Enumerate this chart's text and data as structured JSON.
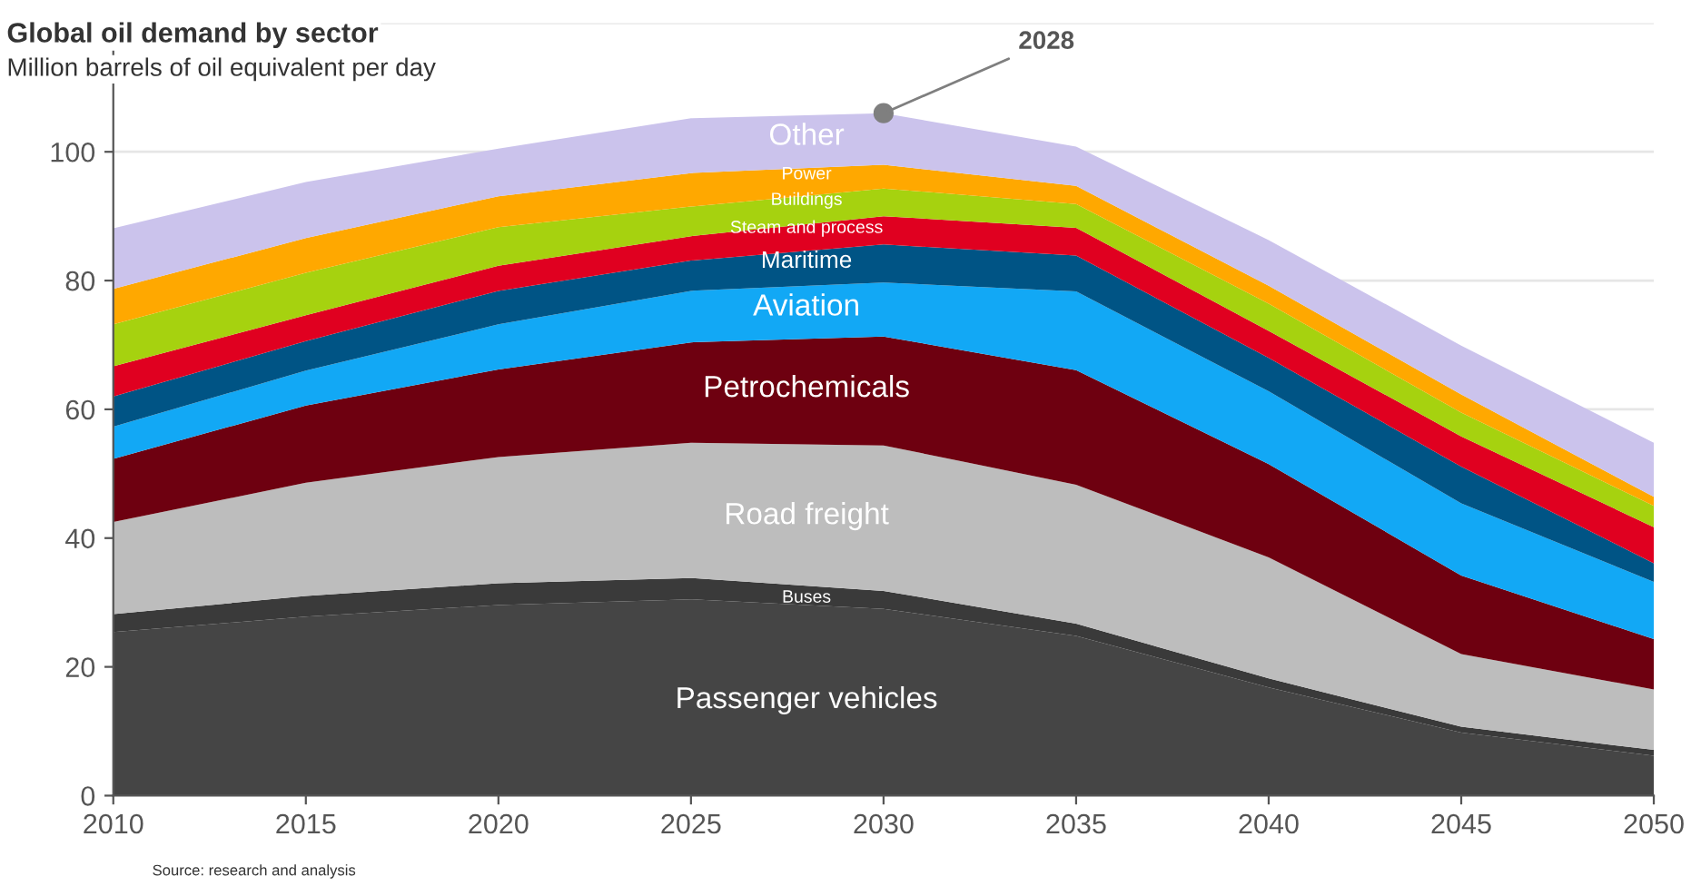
{
  "chart_data": {
    "type": "area",
    "stacked": true,
    "title": "Global oil demand by sector",
    "subtitle": "Million barrels of oil equivalent per day",
    "x": [
      2010,
      2015,
      2020,
      2025,
      2030,
      2035,
      2040,
      2045,
      2050
    ],
    "series": [
      {
        "name": "Passenger vehicles",
        "color": "#454545",
        "values": [
          25.4,
          27.8,
          29.6,
          30.5,
          29.0,
          24.8,
          16.8,
          9.8,
          6.2
        ]
      },
      {
        "name": "Buses",
        "color": "#3a3a3a",
        "values": [
          2.8,
          3.2,
          3.4,
          3.3,
          2.8,
          1.9,
          1.4,
          0.9,
          0.9
        ]
      },
      {
        "name": "Road freight",
        "color": "#bdbdbd",
        "values": [
          14.3,
          17.6,
          19.6,
          21.0,
          22.6,
          21.6,
          18.8,
          11.3,
          9.4
        ]
      },
      {
        "name": "Petrochemicals",
        "color": "#6e0010",
        "values": [
          9.8,
          12.0,
          13.6,
          15.6,
          16.9,
          17.8,
          14.5,
          12.2,
          7.8
        ]
      },
      {
        "name": "Aviation",
        "color": "#12a8f5",
        "values": [
          5.0,
          5.4,
          7.0,
          8.0,
          8.4,
          12.2,
          11.3,
          11.2,
          8.9
        ]
      },
      {
        "name": "Maritime",
        "color": "#005485",
        "values": [
          4.7,
          4.6,
          5.2,
          4.7,
          5.9,
          5.6,
          5.2,
          5.7,
          2.9
        ]
      },
      {
        "name": "Steam and process",
        "color": "#e00020",
        "values": [
          4.7,
          4.0,
          3.9,
          3.8,
          4.4,
          4.3,
          4.2,
          4.7,
          5.6
        ]
      },
      {
        "name": "Buildings",
        "color": "#a6d20f",
        "values": [
          6.5,
          6.6,
          6.0,
          4.6,
          4.3,
          3.7,
          4.2,
          3.7,
          3.3
        ]
      },
      {
        "name": "Power",
        "color": "#ffa800",
        "values": [
          5.5,
          5.4,
          4.8,
          5.2,
          3.7,
          2.8,
          2.8,
          2.8,
          1.4
        ]
      },
      {
        "name": "Other",
        "color": "#cbc3ec",
        "values": [
          9.4,
          8.7,
          7.4,
          8.5,
          8.0,
          6.1,
          7.1,
          7.6,
          8.4
        ]
      }
    ],
    "xlim": [
      2010,
      2050
    ],
    "xticks": [
      2010,
      2015,
      2020,
      2025,
      2030,
      2035,
      2040,
      2045,
      2050
    ],
    "ylim": [
      0,
      120
    ],
    "yticks": [
      0,
      20,
      40,
      60,
      80,
      100,
      {
        "value": 120,
        "label": null
      }
    ],
    "grid": "y",
    "legend": false,
    "annotations": [
      {
        "text": "2028",
        "x": 2030,
        "y": 106
      },
      "Source: research and analysis"
    ]
  }
}
